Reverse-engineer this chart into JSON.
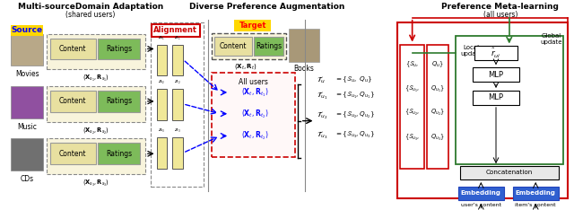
{
  "title_left": "Multi-sourceDomain Adaptation",
  "subtitle_left": "(shared users)",
  "title_mid": "Diverse Preference Augmentation",
  "title_right": "Preference Meta-learning",
  "subtitle_right": "(all users)",
  "source_label": "Source",
  "alignment_label": "Alignment",
  "target_label": "Target",
  "books_label": "Books",
  "all_users_label": "All users",
  "global_update_label": "Global\nupdate",
  "local_update_label": "Local\nupdate",
  "bg_color": "#ffffff",
  "yellow_color": "#FFD700",
  "green_box_color": "#7DBB5A",
  "tan_box_color": "#E8E0A0",
  "red_color": "#CC0000",
  "dark_green_color": "#2D7A2D",
  "blue_color": "#3060D0",
  "source_domains": [
    "Movies",
    "Music",
    "CDs"
  ],
  "concat_label": "Concatenation",
  "mlp_label": "MLP",
  "embedding_label": "Embedding",
  "users_content_label": "user's content",
  "items_content_label": "item's content"
}
